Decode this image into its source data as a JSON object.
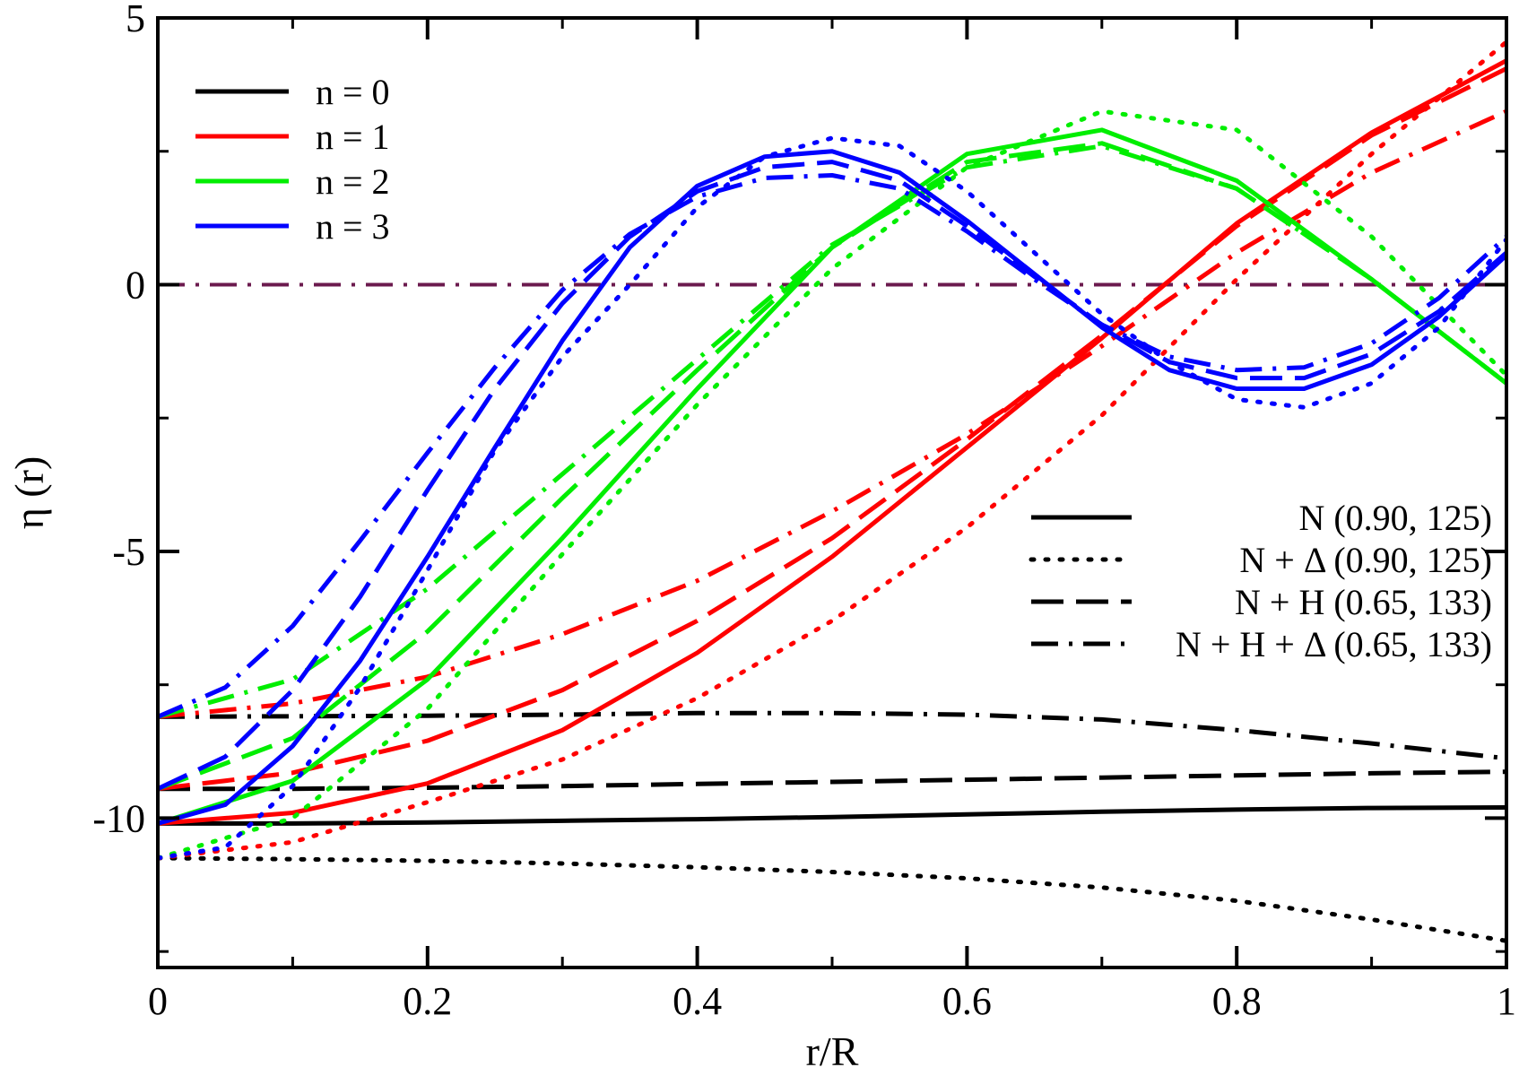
{
  "chart_data": {
    "type": "line",
    "xlabel": "r/R",
    "ylabel": "η (r)",
    "xlim": [
      0,
      1
    ],
    "ylim": [
      -12.8,
      5
    ],
    "x_ticks": [
      0,
      0.2,
      0.4,
      0.6,
      0.8,
      1
    ],
    "x_tick_labels": [
      "0",
      "0.2",
      "0.4",
      "0.6",
      "0.8",
      "1"
    ],
    "y_ticks": [
      5,
      0,
      -5,
      -10
    ],
    "y_tick_labels": [
      "5",
      "0",
      "-5",
      "-10"
    ],
    "y_minor_ticks": [
      2.5,
      -2.5,
      -7.5,
      -12.5
    ],
    "reference_line": {
      "y": 0,
      "style": "dashdot",
      "color": "#6b1a4e"
    },
    "legend_modes": [
      {
        "label": "n = 0",
        "color": "#000000"
      },
      {
        "label": "n = 1",
        "color": "#ff0000"
      },
      {
        "label": "n = 2",
        "color": "#00ee00"
      },
      {
        "label": "n = 3",
        "color": "#0000ff"
      }
    ],
    "legend_models": [
      {
        "label": "N (0.90, 125)",
        "style": "solid"
      },
      {
        "label": "N + Δ (0.90, 125)",
        "style": "dotted"
      },
      {
        "label": "N + H (0.65, 133)",
        "style": "dashed"
      },
      {
        "label": "N + H + Δ (0.65, 133)",
        "style": "dashdot"
      }
    ],
    "series": [
      {
        "name": "n = 0, N (0.90, 125)",
        "color": "#000000",
        "style": "solid",
        "x": [
          0,
          0.1,
          0.2,
          0.3,
          0.4,
          0.5,
          0.6,
          0.7,
          0.8,
          0.9,
          1.0
        ],
        "y": [
          -10.1,
          -10.1,
          -10.08,
          -10.05,
          -10.02,
          -9.98,
          -9.93,
          -9.88,
          -9.84,
          -9.81,
          -9.8
        ]
      },
      {
        "name": "n = 0, N + Δ (0.90, 125)",
        "color": "#000000",
        "style": "dotted",
        "x": [
          0,
          0.1,
          0.2,
          0.3,
          0.4,
          0.5,
          0.6,
          0.7,
          0.8,
          0.9,
          1.0
        ],
        "y": [
          -10.75,
          -10.77,
          -10.8,
          -10.85,
          -10.92,
          -11.01,
          -11.13,
          -11.3,
          -11.55,
          -11.9,
          -12.3
        ]
      },
      {
        "name": "n = 0, N + H (0.65, 133)",
        "color": "#000000",
        "style": "dashed",
        "x": [
          0,
          0.1,
          0.2,
          0.3,
          0.4,
          0.5,
          0.6,
          0.7,
          0.8,
          0.9,
          1.0
        ],
        "y": [
          -9.45,
          -9.45,
          -9.43,
          -9.4,
          -9.36,
          -9.32,
          -9.28,
          -9.24,
          -9.2,
          -9.16,
          -9.13
        ]
      },
      {
        "name": "n = 0, N + H + Δ (0.65, 133)",
        "color": "#000000",
        "style": "dashdot",
        "x": [
          0,
          0.1,
          0.2,
          0.3,
          0.4,
          0.5,
          0.6,
          0.7,
          0.8,
          0.9,
          1.0
        ],
        "y": [
          -8.1,
          -8.09,
          -8.08,
          -8.06,
          -8.03,
          -8.03,
          -8.06,
          -8.15,
          -8.35,
          -8.6,
          -8.88
        ]
      },
      {
        "name": "n = 1, N (0.90, 125)",
        "color": "#ff0000",
        "style": "solid",
        "x": [
          0,
          0.1,
          0.2,
          0.3,
          0.4,
          0.5,
          0.6,
          0.7,
          0.8,
          0.9,
          1.0
        ],
        "y": [
          -10.1,
          -9.9,
          -9.35,
          -8.35,
          -6.9,
          -5.1,
          -3.05,
          -1.0,
          1.15,
          2.85,
          4.2
        ]
      },
      {
        "name": "n = 1, N + Δ (0.90, 125)",
        "color": "#ff0000",
        "style": "dotted",
        "x": [
          0,
          0.1,
          0.2,
          0.3,
          0.4,
          0.5,
          0.6,
          0.7,
          0.8,
          0.9,
          1.0
        ],
        "y": [
          -10.75,
          -10.45,
          -9.7,
          -8.9,
          -7.75,
          -6.3,
          -4.55,
          -2.45,
          0.1,
          2.45,
          4.55
        ]
      },
      {
        "name": "n = 1, N + H (0.65, 133)",
        "color": "#ff0000",
        "style": "dashed",
        "x": [
          0,
          0.1,
          0.2,
          0.3,
          0.4,
          0.5,
          0.6,
          0.7,
          0.8,
          0.9,
          1.0
        ],
        "y": [
          -9.45,
          -9.15,
          -8.55,
          -7.6,
          -6.3,
          -4.75,
          -2.9,
          -0.95,
          1.1,
          2.8,
          4.05
        ]
      },
      {
        "name": "n = 1, N + H + Δ (0.65, 133)",
        "color": "#ff0000",
        "style": "dashdot",
        "x": [
          0,
          0.1,
          0.2,
          0.3,
          0.4,
          0.5,
          0.6,
          0.7,
          0.8,
          0.9,
          1.0
        ],
        "y": [
          -8.1,
          -7.85,
          -7.35,
          -6.55,
          -5.55,
          -4.25,
          -2.8,
          -1.15,
          0.6,
          2.1,
          3.25
        ]
      },
      {
        "name": "n = 2, N (0.90, 125)",
        "color": "#00ee00",
        "style": "solid",
        "x": [
          0,
          0.1,
          0.2,
          0.3,
          0.4,
          0.5,
          0.6,
          0.7,
          0.8,
          0.9,
          1.0
        ],
        "y": [
          -10.1,
          -9.3,
          -7.4,
          -4.75,
          -1.95,
          0.7,
          2.45,
          2.9,
          1.95,
          0.1,
          -1.85
        ]
      },
      {
        "name": "n = 2, N + Δ (0.90, 125)",
        "color": "#00ee00",
        "style": "dotted",
        "x": [
          0,
          0.1,
          0.2,
          0.3,
          0.4,
          0.5,
          0.6,
          0.7,
          0.8,
          0.9,
          1.0
        ],
        "y": [
          -10.75,
          -10.0,
          -7.95,
          -5.05,
          -2.25,
          0.3,
          2.2,
          3.25,
          2.9,
          0.9,
          -1.7
        ]
      },
      {
        "name": "n = 2, N + H (0.65, 133)",
        "color": "#00ee00",
        "style": "dashed",
        "x": [
          0,
          0.1,
          0.2,
          0.3,
          0.4,
          0.5,
          0.6,
          0.7,
          0.8,
          0.9,
          1.0
        ],
        "y": [
          -9.45,
          -8.5,
          -6.5,
          -4.0,
          -1.6,
          0.7,
          2.3,
          2.65,
          1.8,
          0.1,
          -1.85
        ]
      },
      {
        "name": "n = 2, N + H + Δ (0.65, 133)",
        "color": "#00ee00",
        "style": "dashdot",
        "x": [
          0,
          0.1,
          0.2,
          0.3,
          0.4,
          0.5,
          0.6,
          0.7,
          0.8,
          0.9,
          1.0
        ],
        "y": [
          -8.1,
          -7.4,
          -5.7,
          -3.55,
          -1.4,
          0.75,
          2.2,
          2.6,
          1.8,
          0.1,
          -1.85
        ]
      },
      {
        "name": "n = 3, N (0.90, 125)",
        "color": "#0000ff",
        "style": "solid",
        "x": [
          0,
          0.05,
          0.1,
          0.15,
          0.2,
          0.25,
          0.3,
          0.35,
          0.4,
          0.45,
          0.5,
          0.55,
          0.6,
          0.65,
          0.7,
          0.75,
          0.8,
          0.85,
          0.9,
          0.95,
          1.0
        ],
        "y": [
          -10.1,
          -9.75,
          -8.65,
          -7.05,
          -5.1,
          -3.05,
          -1.05,
          0.7,
          1.85,
          2.4,
          2.5,
          2.1,
          1.2,
          0.2,
          -0.8,
          -1.6,
          -1.95,
          -1.95,
          -1.5,
          -0.6,
          0.55
        ]
      },
      {
        "name": "n = 3, N + Δ (0.90, 125)",
        "color": "#0000ff",
        "style": "dotted",
        "x": [
          0,
          0.05,
          0.1,
          0.15,
          0.2,
          0.25,
          0.3,
          0.35,
          0.4,
          0.45,
          0.5,
          0.55,
          0.6,
          0.65,
          0.7,
          0.75,
          0.8,
          0.85,
          0.9,
          0.95,
          1.0
        ],
        "y": [
          -10.75,
          -10.55,
          -9.4,
          -7.55,
          -5.35,
          -3.1,
          -1.35,
          0.0,
          1.45,
          2.4,
          2.75,
          2.6,
          1.75,
          0.6,
          -0.55,
          -1.45,
          -2.15,
          -2.3,
          -1.85,
          -0.8,
          0.85
        ]
      },
      {
        "name": "n = 3, N + H (0.65, 133)",
        "color": "#0000ff",
        "style": "dashed",
        "x": [
          0,
          0.05,
          0.1,
          0.15,
          0.2,
          0.25,
          0.3,
          0.35,
          0.4,
          0.45,
          0.5,
          0.55,
          0.6,
          0.65,
          0.7,
          0.75,
          0.8,
          0.85,
          0.9,
          0.95,
          1.0
        ],
        "y": [
          -9.45,
          -8.85,
          -7.6,
          -5.85,
          -3.85,
          -1.95,
          -0.35,
          0.9,
          1.75,
          2.2,
          2.3,
          1.95,
          1.1,
          0.15,
          -0.75,
          -1.45,
          -1.75,
          -1.75,
          -1.3,
          -0.5,
          0.6
        ]
      },
      {
        "name": "n = 3, N + H + Δ (0.65, 133)",
        "color": "#0000ff",
        "style": "dashdot",
        "x": [
          0,
          0.05,
          0.1,
          0.15,
          0.2,
          0.25,
          0.3,
          0.35,
          0.4,
          0.45,
          0.5,
          0.55,
          0.6,
          0.65,
          0.7,
          0.75,
          0.8,
          0.85,
          0.9,
          0.95,
          1.0
        ],
        "y": [
          -8.1,
          -7.55,
          -6.4,
          -4.8,
          -3.15,
          -1.55,
          -0.1,
          0.95,
          1.65,
          2.0,
          2.05,
          1.8,
          1.0,
          0.1,
          -0.75,
          -1.35,
          -1.6,
          -1.55,
          -1.1,
          -0.25,
          0.9
        ]
      }
    ]
  }
}
